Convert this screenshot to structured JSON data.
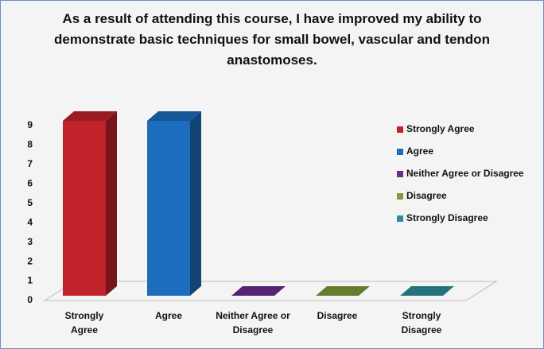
{
  "chart_data": {
    "type": "bar3d",
    "title": "As a result of attending this course, I have improved my ability to demonstrate basic techniques for small bowel, vascular and tendon anastomoses.",
    "categories": [
      "Strongly Agree",
      "Agree",
      "Neither Agree or Disagree",
      "Disagree",
      "Strongly Disagree"
    ],
    "values": [
      9,
      9,
      0,
      0,
      0
    ],
    "colors": [
      "#c0232a",
      "#1c6dbd",
      "#6a2c8e",
      "#7f9c3a",
      "#2e8e9f"
    ],
    "ylim": [
      0,
      9
    ],
    "yticks": [
      0,
      1,
      2,
      3,
      4,
      5,
      6,
      7,
      8,
      9
    ],
    "legend": "right"
  }
}
